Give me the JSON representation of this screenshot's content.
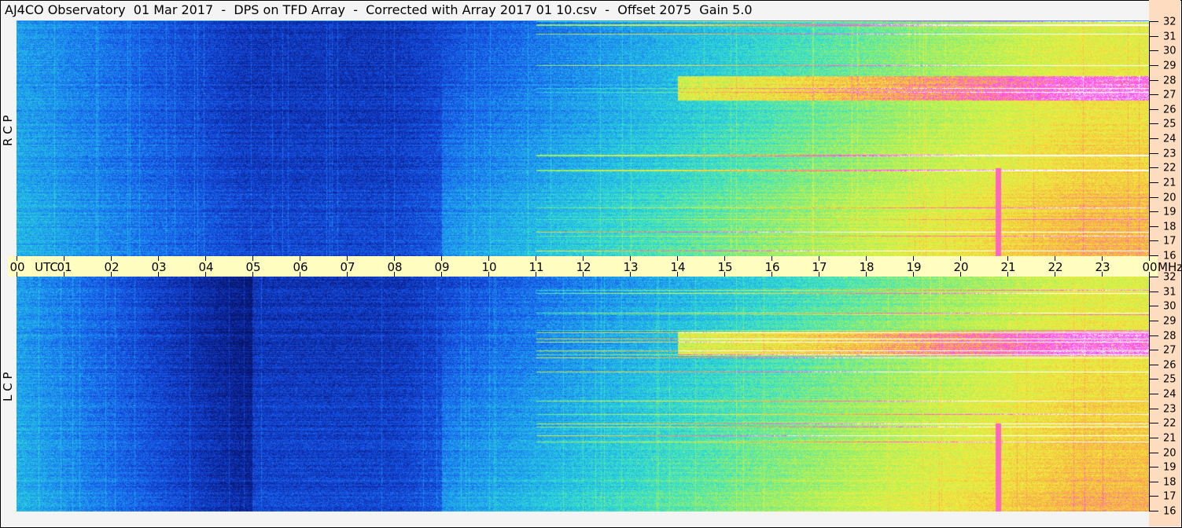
{
  "title": "AJ4CO Observatory  01 Mar 2017  -  DPS on TFD Array  -  Corrected with Array 2017 01 10.csv  -  Offset 2075  Gain 5.0",
  "chart_data": [
    {
      "type": "heatmap",
      "panel_label": "R C P",
      "x_unit": "UTC",
      "y_unit": "MHz",
      "xlim": [
        0,
        24
      ],
      "ylim": [
        16,
        32
      ],
      "x_ticks": [
        "00",
        "01",
        "02",
        "03",
        "04",
        "05",
        "06",
        "07",
        "08",
        "09",
        "10",
        "11",
        "12",
        "13",
        "14",
        "15",
        "16",
        "17",
        "18",
        "19",
        "20",
        "21",
        "22",
        "23",
        "00"
      ],
      "y_ticks": [
        "32",
        "31",
        "30",
        "29",
        "28",
        "27",
        "26",
        "25",
        "24",
        "23",
        "22",
        "21",
        "20",
        "19",
        "18",
        "17",
        "16"
      ]
    },
    {
      "type": "heatmap",
      "panel_label": "L C P",
      "x_unit": "UTC",
      "y_unit": "MHz",
      "xlim": [
        0,
        24
      ],
      "ylim": [
        16,
        32
      ],
      "x_ticks": [
        "00",
        "01",
        "02",
        "03",
        "04",
        "05",
        "06",
        "07",
        "08",
        "09",
        "10",
        "11",
        "12",
        "13",
        "14",
        "15",
        "16",
        "17",
        "18",
        "19",
        "20",
        "21",
        "22",
        "23",
        "00"
      ],
      "y_ticks": [
        "32",
        "31",
        "30",
        "29",
        "28",
        "27",
        "26",
        "25",
        "24",
        "23",
        "22",
        "21",
        "20",
        "19",
        "18",
        "17",
        "16"
      ]
    }
  ],
  "colors": {
    "title_bg": "#f4f4f4",
    "axis_band": "#fffdc0",
    "right_axis_bg": "#fddcc0",
    "colormap": [
      "#050a40",
      "#0a1e8c",
      "#1650e6",
      "#1ea0f0",
      "#30e0d0",
      "#a0f060",
      "#f0f040",
      "#f8b040",
      "#ff40ff",
      "#ffffff"
    ]
  }
}
